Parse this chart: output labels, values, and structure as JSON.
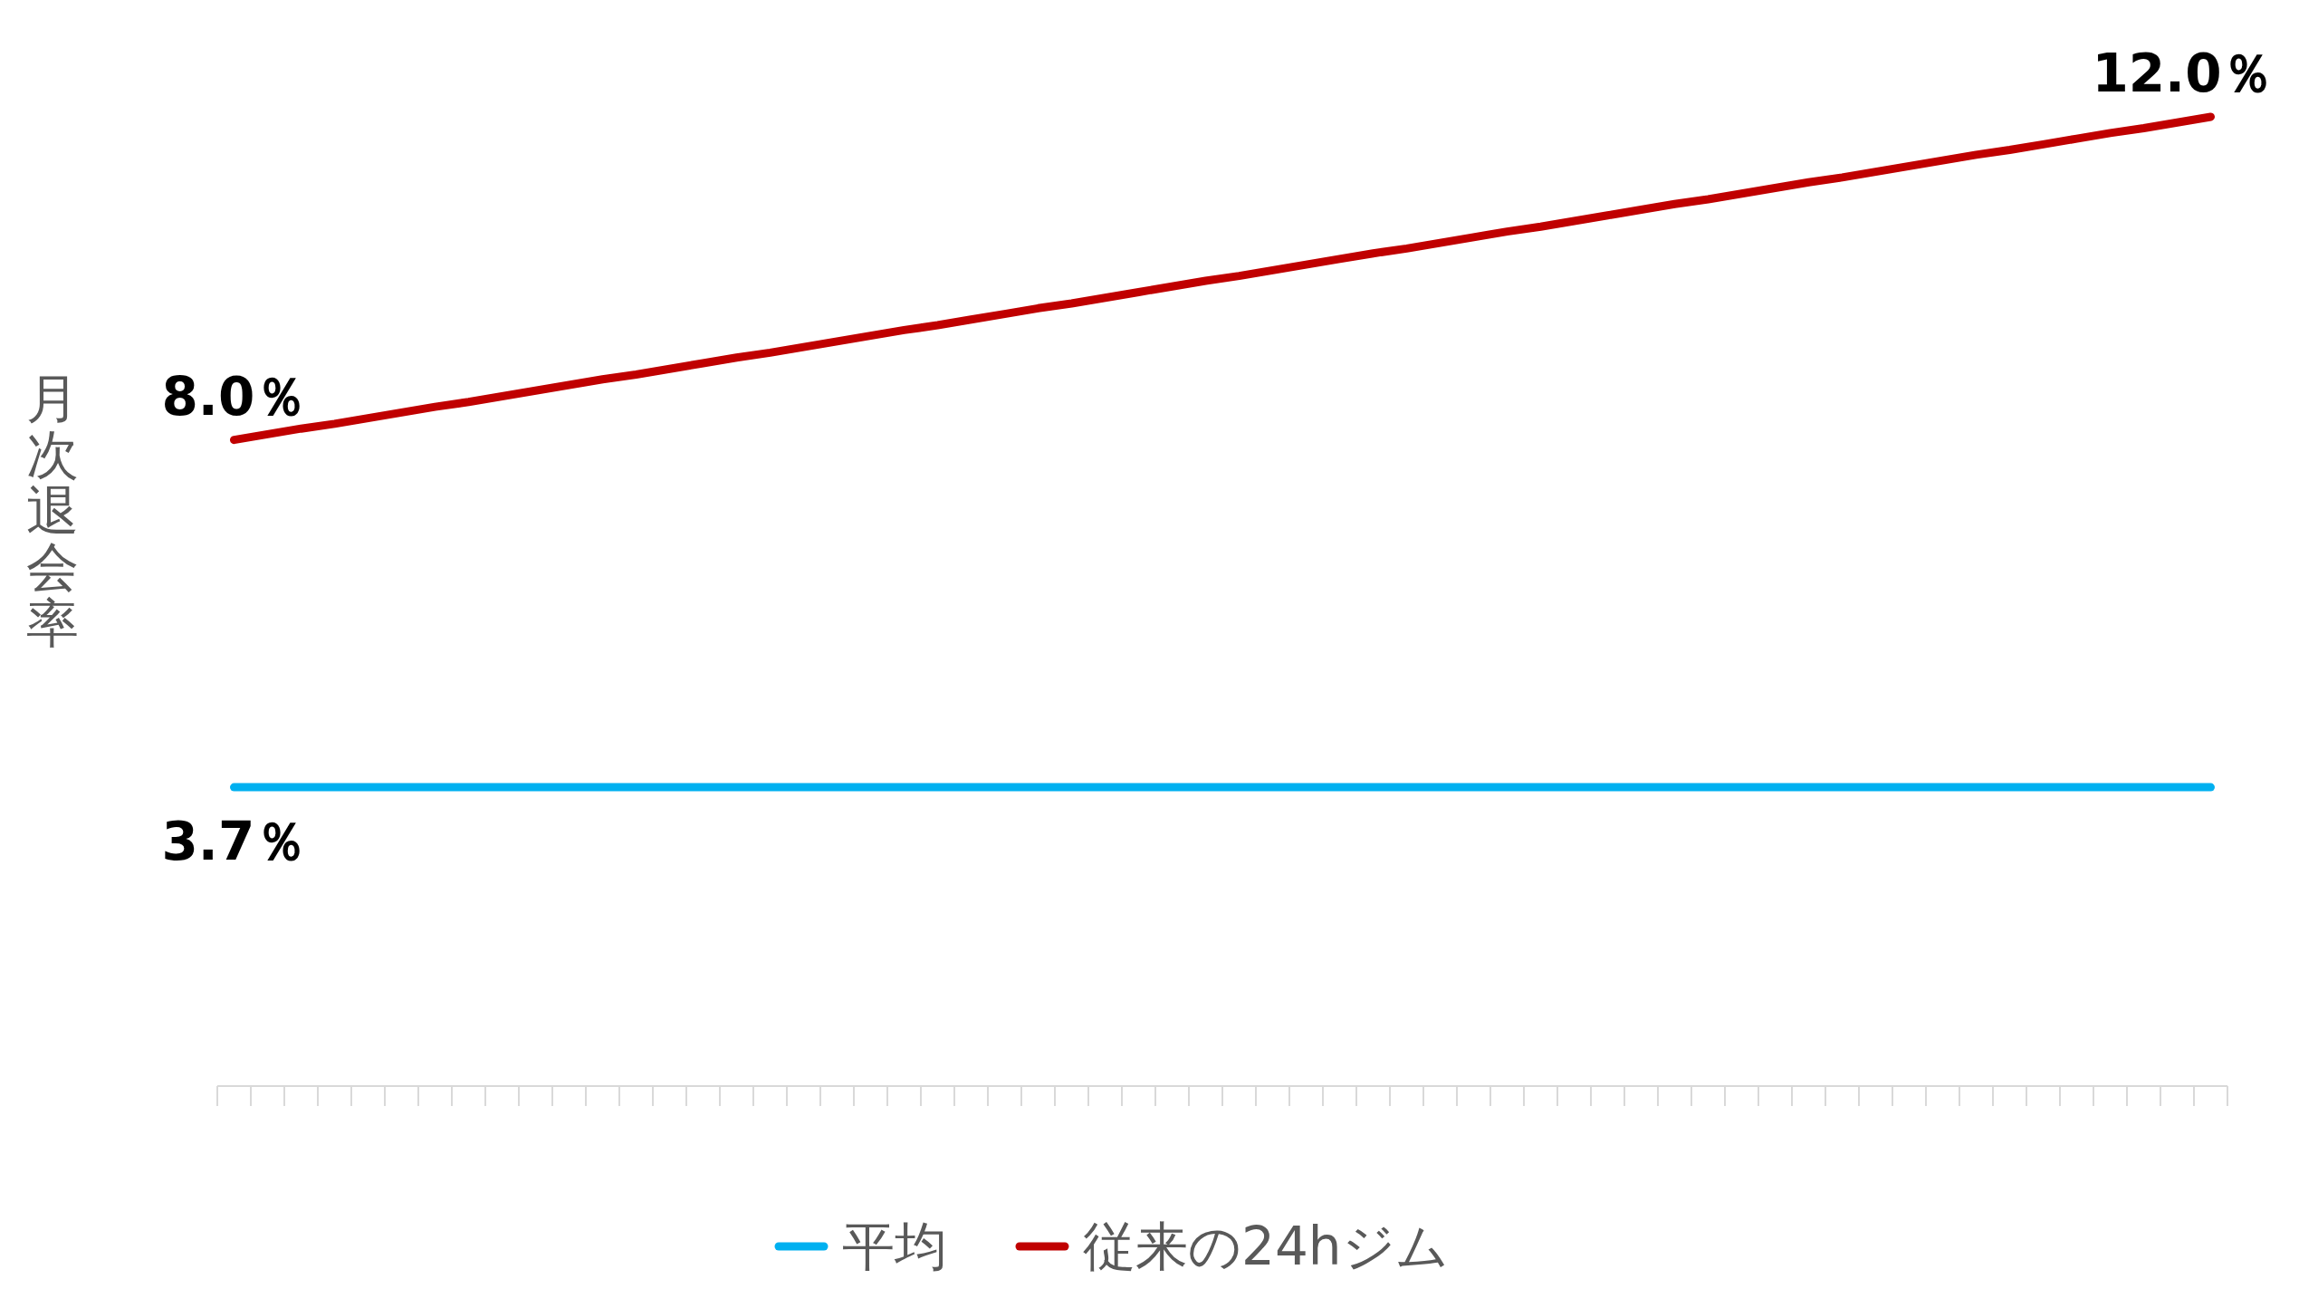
{
  "chart_data": {
    "type": "line",
    "ylabel": "月次退会率",
    "legend": "bottom",
    "categories": [
      null,
      null,
      null,
      null,
      null,
      null,
      null,
      null,
      null,
      null,
      null,
      null,
      null,
      null,
      null,
      null,
      null,
      null,
      null,
      null,
      null,
      null,
      null,
      null,
      null,
      null,
      null,
      null,
      null,
      null,
      null,
      null,
      null,
      null,
      null,
      null,
      null,
      null,
      null,
      null,
      null,
      null,
      null,
      null,
      null,
      null,
      null,
      null,
      null,
      null,
      null,
      null,
      null,
      null,
      null,
      null,
      null,
      null,
      null,
      null
    ],
    "series": [
      {
        "name": "平均",
        "color": "#00b0f0",
        "values": [
          3.7,
          3.7,
          3.7,
          3.7,
          3.7,
          3.7,
          3.7,
          3.7,
          3.7,
          3.7,
          3.7,
          3.7,
          3.7,
          3.7,
          3.7,
          3.7,
          3.7,
          3.7,
          3.7,
          3.7,
          3.7,
          3.7,
          3.7,
          3.7,
          3.7,
          3.7,
          3.7,
          3.7,
          3.7,
          3.7,
          3.7,
          3.7,
          3.7,
          3.7,
          3.7,
          3.7,
          3.7,
          3.7,
          3.7,
          3.7,
          3.7,
          3.7,
          3.7,
          3.7,
          3.7,
          3.7,
          3.7,
          3.7,
          3.7,
          3.7,
          3.7,
          3.7,
          3.7,
          3.7,
          3.7,
          3.7,
          3.7,
          3.7,
          3.7,
          3.7
        ],
        "value_labels": [
          "3.7％",
          null,
          null,
          null,
          null,
          null,
          null,
          null,
          null,
          null,
          null,
          null,
          null,
          null,
          null,
          null,
          null,
          null,
          null,
          null,
          null,
          null,
          null,
          null,
          null,
          null,
          null,
          null,
          null,
          null,
          null,
          null,
          null,
          null,
          null,
          null,
          null,
          null,
          null,
          null,
          null,
          null,
          null,
          null,
          null,
          null,
          null,
          null,
          null,
          null,
          null,
          null,
          null,
          null,
          null,
          null,
          null,
          null,
          null,
          null
        ]
      },
      {
        "name": "従来の24hジム",
        "color": "#c00000",
        "values": [
          8.0,
          8.07,
          8.14,
          8.2,
          8.27,
          8.34,
          8.41,
          8.47,
          8.54,
          8.61,
          8.68,
          8.75,
          8.81,
          8.88,
          8.95,
          9.02,
          9.08,
          9.15,
          9.22,
          9.29,
          9.36,
          9.42,
          9.49,
          9.56,
          9.63,
          9.69,
          9.76,
          9.83,
          9.9,
          9.97,
          10.03,
          10.1,
          10.17,
          10.24,
          10.31,
          10.37,
          10.44,
          10.51,
          10.58,
          10.64,
          10.71,
          10.78,
          10.85,
          10.92,
          10.98,
          11.05,
          11.12,
          11.19,
          11.25,
          11.32,
          11.39,
          11.46,
          11.53,
          11.59,
          11.66,
          11.73,
          11.8,
          11.86,
          11.93,
          12.0
        ],
        "value_labels": [
          "8.0％",
          null,
          null,
          null,
          null,
          null,
          null,
          null,
          null,
          null,
          null,
          null,
          null,
          null,
          null,
          null,
          null,
          null,
          null,
          null,
          null,
          null,
          null,
          null,
          null,
          null,
          null,
          null,
          null,
          null,
          null,
          null,
          null,
          null,
          null,
          null,
          null,
          null,
          null,
          null,
          null,
          null,
          null,
          null,
          null,
          null,
          null,
          null,
          null,
          null,
          null,
          null,
          null,
          null,
          null,
          null,
          null,
          null,
          null,
          "12.0％"
        ]
      }
    ]
  }
}
